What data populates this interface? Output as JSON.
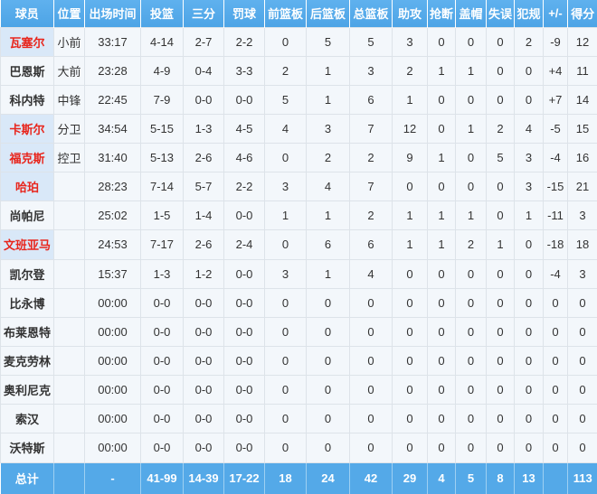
{
  "colors": {
    "header_bg": "#4da4e6",
    "header_bg_top": "#5fb1ee",
    "header_text": "#ffffff",
    "row_bg": "#f3f7fb",
    "cell_border": "#dde3e9",
    "cell_text": "#333333",
    "highlight_name_bg": "#d9e8f8",
    "highlight_name_text": "#e8251c",
    "totals_bg": "#54a9e8",
    "totals_text": "#ffffff",
    "totals_divider": "#9ed0f2"
  },
  "table": {
    "headers": [
      "球员",
      "位置",
      "出场时间",
      "投篮",
      "三分",
      "罚球",
      "前篮板",
      "后篮板",
      "总篮板",
      "助攻",
      "抢断",
      "盖帽",
      "失误",
      "犯规",
      "+/-",
      "得分"
    ],
    "rows": [
      {
        "highlight": true,
        "cells": [
          "瓦塞尔",
          "小前",
          "33:17",
          "4-14",
          "2-7",
          "2-2",
          "0",
          "5",
          "5",
          "3",
          "0",
          "0",
          "0",
          "2",
          "-9",
          "12"
        ]
      },
      {
        "highlight": false,
        "cells": [
          "巴恩斯",
          "大前",
          "23:28",
          "4-9",
          "0-4",
          "3-3",
          "2",
          "1",
          "3",
          "2",
          "1",
          "1",
          "0",
          "0",
          "+4",
          "11"
        ]
      },
      {
        "highlight": false,
        "cells": [
          "科内特",
          "中锋",
          "22:45",
          "7-9",
          "0-0",
          "0-0",
          "5",
          "1",
          "6",
          "1",
          "0",
          "0",
          "0",
          "0",
          "+7",
          "14"
        ]
      },
      {
        "highlight": true,
        "cells": [
          "卡斯尔",
          "分卫",
          "34:54",
          "5-15",
          "1-3",
          "4-5",
          "4",
          "3",
          "7",
          "12",
          "0",
          "1",
          "2",
          "4",
          "-5",
          "15"
        ]
      },
      {
        "highlight": true,
        "cells": [
          "福克斯",
          "控卫",
          "31:40",
          "5-13",
          "2-6",
          "4-6",
          "0",
          "2",
          "2",
          "9",
          "1",
          "0",
          "5",
          "3",
          "-4",
          "16"
        ]
      },
      {
        "highlight": true,
        "cells": [
          "哈珀",
          "",
          "28:23",
          "7-14",
          "5-7",
          "2-2",
          "3",
          "4",
          "7",
          "0",
          "0",
          "0",
          "0",
          "3",
          "-15",
          "21"
        ]
      },
      {
        "highlight": false,
        "cells": [
          "尚帕尼",
          "",
          "25:02",
          "1-5",
          "1-4",
          "0-0",
          "1",
          "1",
          "2",
          "1",
          "1",
          "1",
          "0",
          "1",
          "-11",
          "3"
        ]
      },
      {
        "highlight": true,
        "cells": [
          "文班亚马",
          "",
          "24:53",
          "7-17",
          "2-6",
          "2-4",
          "0",
          "6",
          "6",
          "1",
          "1",
          "2",
          "1",
          "0",
          "-18",
          "18"
        ]
      },
      {
        "highlight": false,
        "cells": [
          "凯尔登",
          "",
          "15:37",
          "1-3",
          "1-2",
          "0-0",
          "3",
          "1",
          "4",
          "0",
          "0",
          "0",
          "0",
          "0",
          "-4",
          "3"
        ]
      },
      {
        "highlight": false,
        "cells": [
          "比永博",
          "",
          "00:00",
          "0-0",
          "0-0",
          "0-0",
          "0",
          "0",
          "0",
          "0",
          "0",
          "0",
          "0",
          "0",
          "0",
          "0"
        ]
      },
      {
        "highlight": false,
        "cells": [
          "布莱恩特",
          "",
          "00:00",
          "0-0",
          "0-0",
          "0-0",
          "0",
          "0",
          "0",
          "0",
          "0",
          "0",
          "0",
          "0",
          "0",
          "0"
        ]
      },
      {
        "highlight": false,
        "cells": [
          "麦克劳林",
          "",
          "00:00",
          "0-0",
          "0-0",
          "0-0",
          "0",
          "0",
          "0",
          "0",
          "0",
          "0",
          "0",
          "0",
          "0",
          "0"
        ]
      },
      {
        "highlight": false,
        "cells": [
          "奥利尼克",
          "",
          "00:00",
          "0-0",
          "0-0",
          "0-0",
          "0",
          "0",
          "0",
          "0",
          "0",
          "0",
          "0",
          "0",
          "0",
          "0"
        ]
      },
      {
        "highlight": false,
        "cells": [
          "索汉",
          "",
          "00:00",
          "0-0",
          "0-0",
          "0-0",
          "0",
          "0",
          "0",
          "0",
          "0",
          "0",
          "0",
          "0",
          "0",
          "0"
        ]
      },
      {
        "highlight": false,
        "cells": [
          "沃特斯",
          "",
          "00:00",
          "0-0",
          "0-0",
          "0-0",
          "0",
          "0",
          "0",
          "0",
          "0",
          "0",
          "0",
          "0",
          "0",
          "0"
        ]
      }
    ],
    "totals": {
      "cells": [
        "总计",
        "",
        "-",
        "41-99",
        "14-39",
        "17-22",
        "18",
        "24",
        "42",
        "29",
        "4",
        "5",
        "8",
        "13",
        "",
        "113"
      ]
    }
  }
}
